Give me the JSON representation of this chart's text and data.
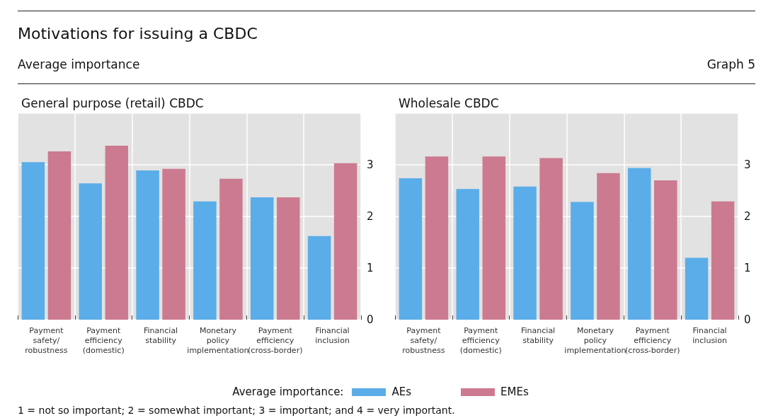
{
  "chart_data": [
    {
      "type": "bar",
      "title": "General purpose (retail) CBDC",
      "annotations": [
        "Motivations for issuing a CBDC",
        "Average importance",
        "Graph 5"
      ],
      "categories": [
        "Payment safety/ robustness",
        "Payment efficiency (domestic)",
        "Financial stability",
        "Monetary policy implementation",
        "Payment efficiency (cross-border)",
        "Financial inclusion"
      ],
      "series": [
        {
          "name": "AEs",
          "color": "#5aade8",
          "values": [
            3.05,
            2.64,
            2.89,
            2.29,
            2.37,
            1.62
          ]
        },
        {
          "name": "EMEs",
          "color": "#cc7a90",
          "values": [
            3.26,
            3.37,
            2.92,
            2.73,
            2.37,
            3.03
          ]
        }
      ],
      "ylim": [
        0,
        4
      ],
      "yticks": [
        0,
        1,
        2,
        3
      ],
      "grid": true,
      "legend": "bottom",
      "legend_title": "Average importance:"
    },
    {
      "type": "bar",
      "title": "Wholesale CBDC",
      "annotations": [
        "1 = not so important; 2 = somewhat important; 3 = important; and 4 = very important."
      ],
      "categories": [
        "Payment safety/ robustness",
        "Payment efficiency (domestic)",
        "Financial stability",
        "Monetary policy implementation",
        "Payment efficiency (cross-border)",
        "Financial inclusion"
      ],
      "series": [
        {
          "name": "AEs",
          "color": "#5aade8",
          "values": [
            2.74,
            2.53,
            2.58,
            2.28,
            2.94,
            1.2
          ]
        },
        {
          "name": "EMEs",
          "color": "#cc7a90",
          "values": [
            3.16,
            3.16,
            3.13,
            2.84,
            2.7,
            2.29
          ]
        }
      ],
      "ylim": [
        0,
        4
      ],
      "yticks": [
        0,
        1,
        2,
        3
      ],
      "grid": true
    }
  ]
}
